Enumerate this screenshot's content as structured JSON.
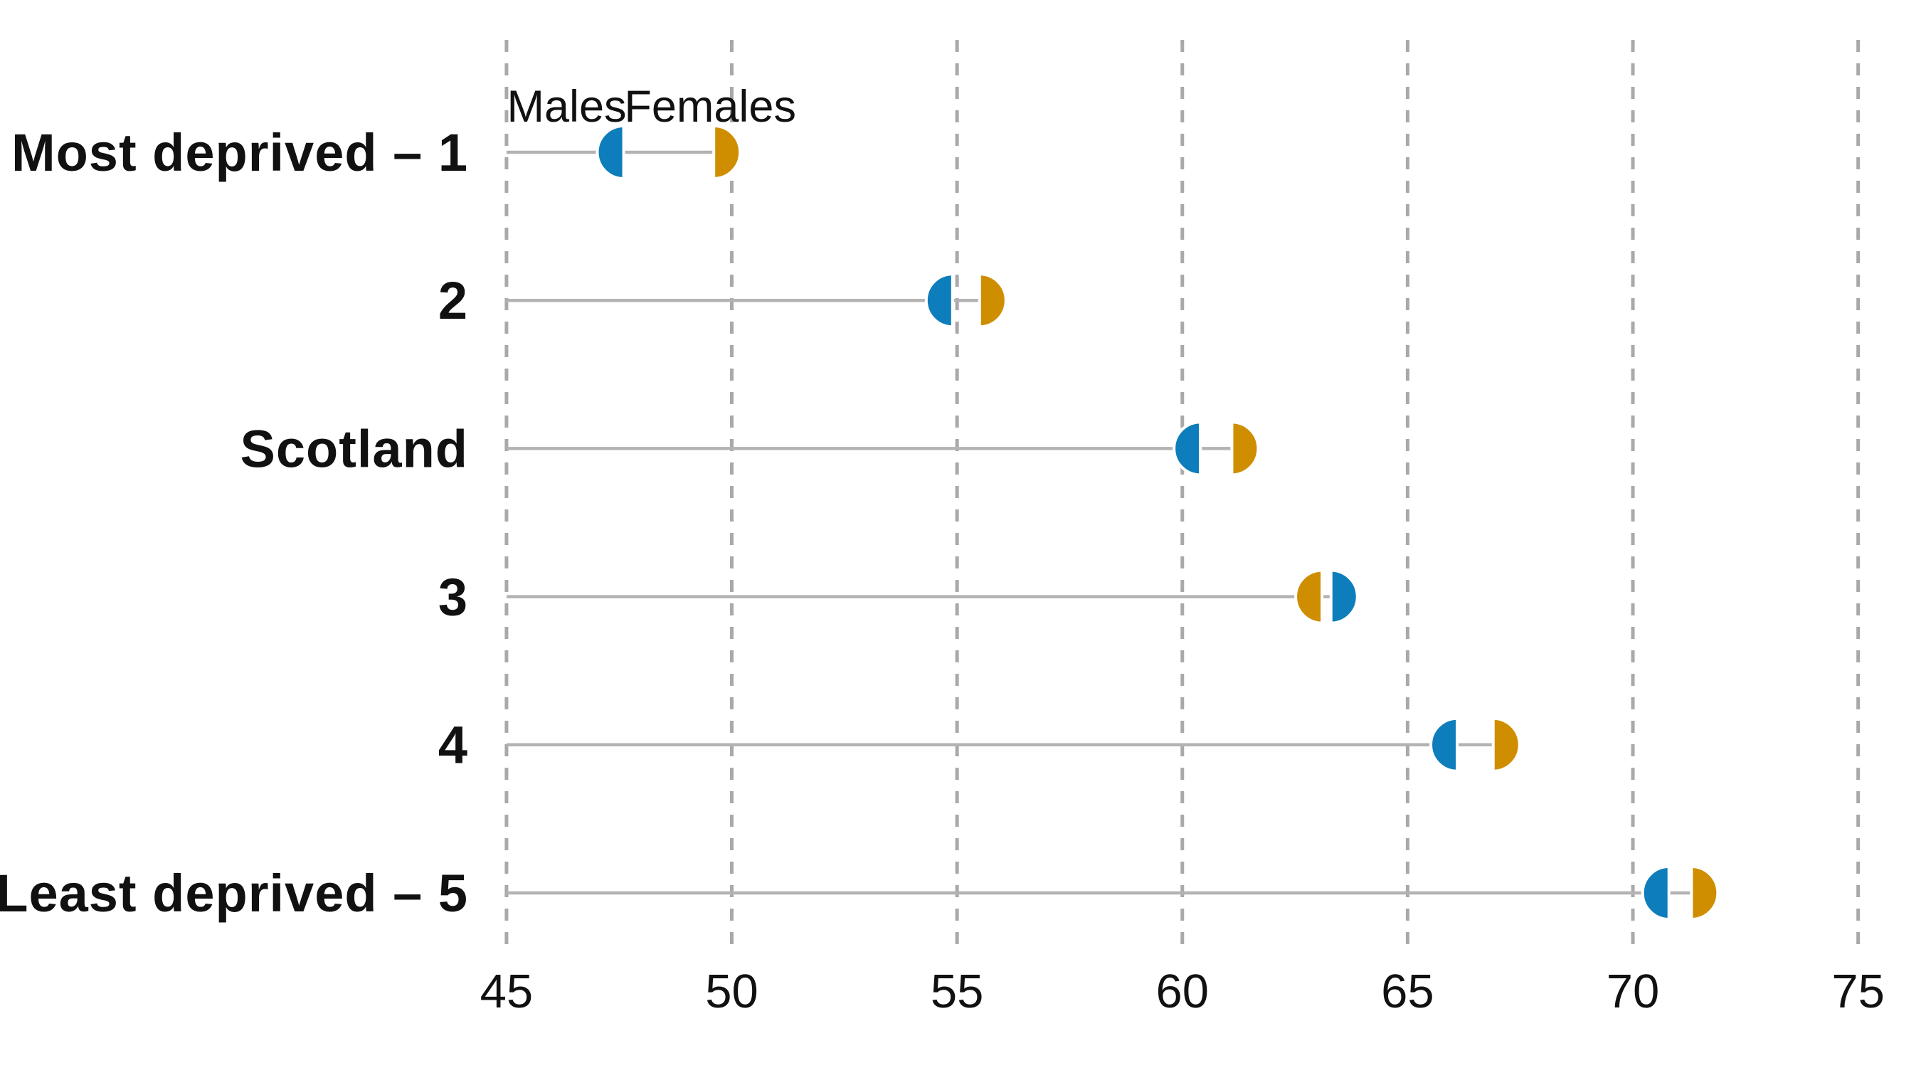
{
  "page": {
    "background_color": "#ffffff"
  },
  "chart_data": {
    "type": "dumbbell",
    "orientation": "horizontal",
    "title": "",
    "xlabel": "",
    "ylabel": "",
    "categories": [
      "Most deprived – 1",
      "2",
      "Scotland",
      "3",
      "4",
      "Least deprived – 5"
    ],
    "series": [
      {
        "name": "Males",
        "color": "#0e7dbb",
        "values": [
          47.6,
          54.9,
          60.4,
          63.3,
          66.1,
          70.8
        ]
      },
      {
        "name": "Females",
        "color": "#cf8e00",
        "values": [
          49.6,
          55.5,
          61.1,
          63.1,
          66.9,
          71.3
        ]
      }
    ],
    "xlim": [
      45,
      75
    ],
    "xticks": [
      45,
      50,
      55,
      60,
      65,
      70,
      75
    ],
    "grid": {
      "vertical_dashed": true,
      "color": "#a9a9a9"
    },
    "connector_color": "#b3b3b3",
    "marker_style": "half-circle, flat edge at value, curved side pointing away from partner",
    "legend": {
      "labels": [
        "Males",
        "Females"
      ],
      "position": "above first category markers"
    }
  }
}
